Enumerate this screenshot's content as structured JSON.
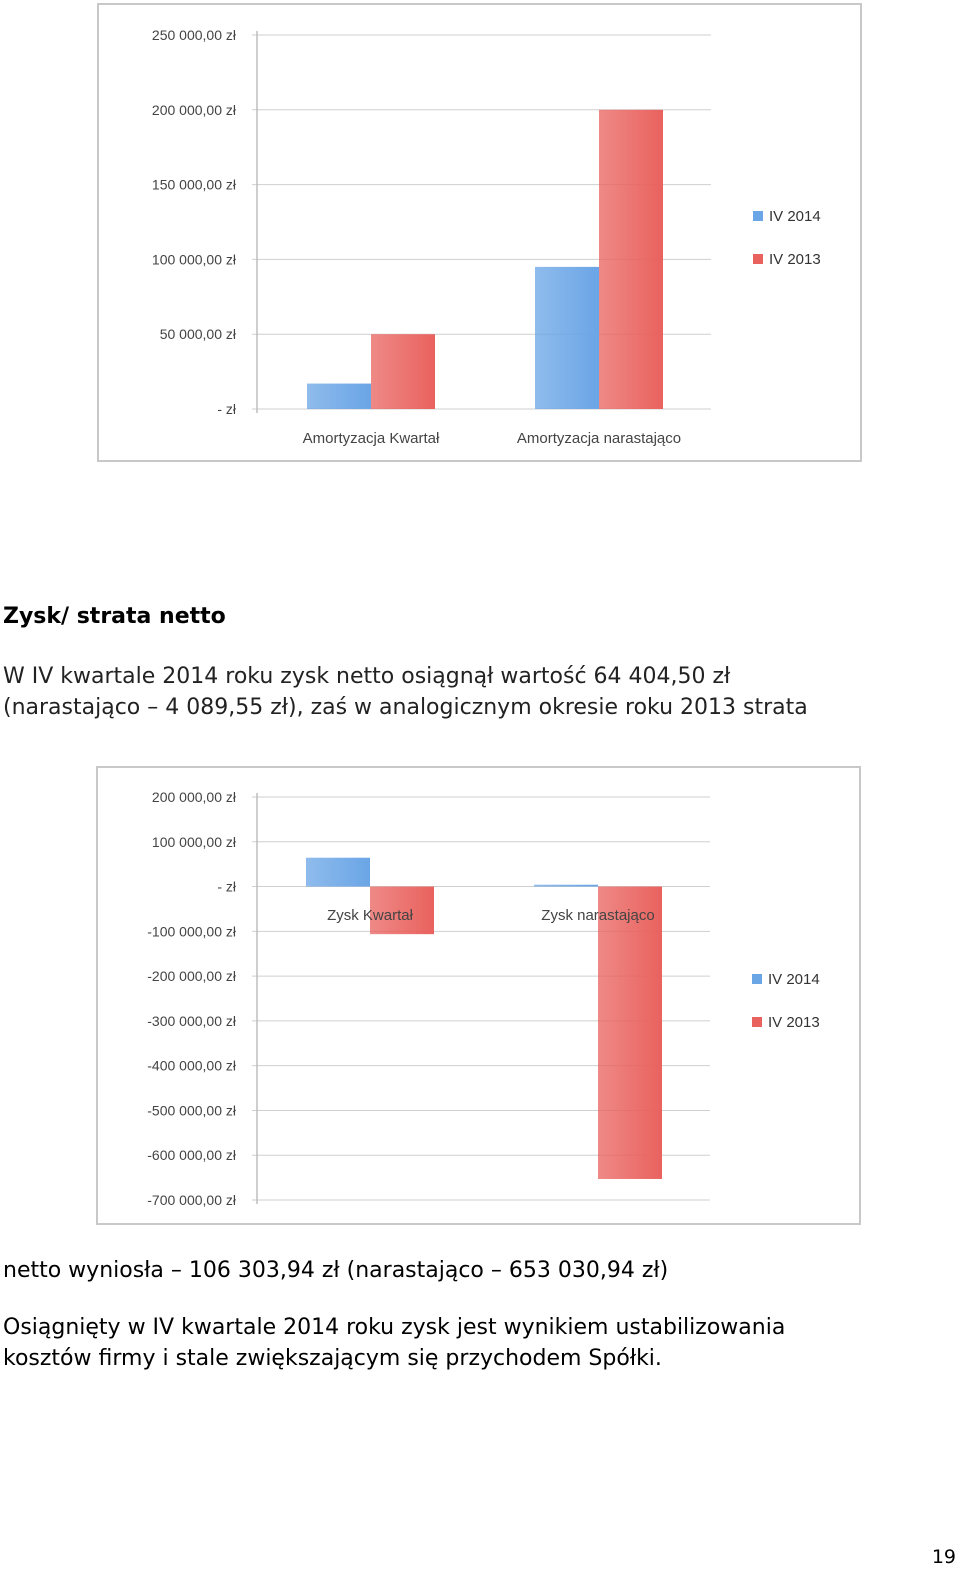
{
  "chart_data": [
    {
      "type": "bar",
      "categories": [
        "Amortyzacja Kwartał",
        "Amortyzacja narastająco"
      ],
      "series": [
        {
          "name": "IV 2014",
          "values": [
            17000,
            95000
          ]
        },
        {
          "name": "IV 2013",
          "values": [
            50000,
            200000
          ]
        }
      ],
      "ylim": [
        0,
        250000
      ],
      "yticks": [
        0,
        50000,
        100000,
        150000,
        200000,
        250000
      ],
      "ytick_labels": [
        "- zł",
        "50 000,00 zł",
        "100 000,00 zł",
        "150 000,00 zł",
        "200 000,00 zł",
        "250 000,00 zł"
      ],
      "grid": true,
      "legend": "right",
      "colors": [
        "#6aa5e6",
        "#e9625e"
      ]
    },
    {
      "type": "bar",
      "categories": [
        "Zysk Kwartał",
        "Zysk narastająco"
      ],
      "series": [
        {
          "name": "IV 2014",
          "values": [
            64404.5,
            4089.55
          ]
        },
        {
          "name": "IV 2013",
          "values": [
            -106303.94,
            -653030.94
          ]
        }
      ],
      "ylim": [
        -700000,
        200000
      ],
      "yticks": [
        200000,
        100000,
        0,
        -100000,
        -200000,
        -300000,
        -400000,
        -500000,
        -600000,
        -700000
      ],
      "ytick_labels": [
        "200 000,00 zł",
        "100 000,00 zł",
        "- zł",
        "-100 000,00 zł",
        "-200 000,00 zł",
        "-300 000,00 zł",
        "-400 000,00 zł",
        "-500 000,00 zł",
        "-600 000,00 zł",
        "-700 000,00 zł"
      ],
      "grid": true,
      "legend": "right",
      "colors": [
        "#6aa5e6",
        "#e9625e"
      ]
    }
  ],
  "text": {
    "heading": "Zysk/ strata netto",
    "p1_line1": "W IV kwartale 2014 roku zysk netto osiągnął wartość 64 404,50 zł",
    "p1_line2": "(narastająco – 4 089,55 zł), zaś w analogicznym okresie roku 2013 strata",
    "p2": "netto wyniosła – 106 303,94 zł (narastająco – 653 030,94 zł)",
    "p3_line1": "Osiągnięty w IV kwartale 2014 roku zysk jest wynikiem ustabilizowania",
    "p3_line2": "kosztów firmy i stale zwiększającym się przychodem Spółki.",
    "page_number": "19"
  }
}
